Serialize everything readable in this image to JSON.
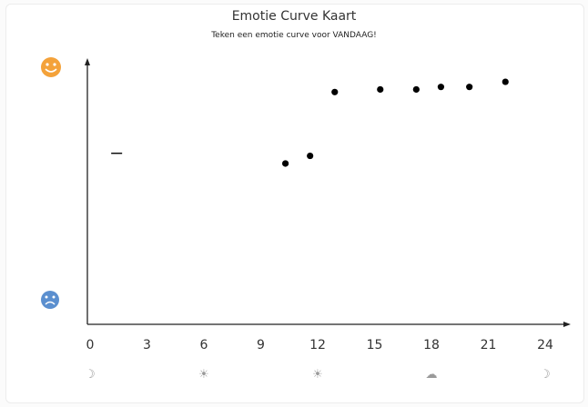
{
  "title": "Emotie Curve Kaart",
  "subtitle": "Teken een emotie curve voor VANDAAG!",
  "emotions": {
    "positive": {
      "icon": "happy-face-icon",
      "label": "",
      "color": "#f4a23a"
    },
    "negative": {
      "icon": "sad-face-icon",
      "label": "",
      "color": "#5b8fcf"
    }
  },
  "time_icons": [
    {
      "name": "moon-icon",
      "glyph": "☽",
      "at": 0
    },
    {
      "name": "sunrise-icon",
      "glyph": "☀",
      "at": 6
    },
    {
      "name": "sun-icon",
      "glyph": "☀",
      "at": 12
    },
    {
      "name": "sunset-icon",
      "glyph": "☁",
      "at": 18
    },
    {
      "name": "moon-icon",
      "glyph": "☽",
      "at": 24
    }
  ],
  "chart_data": {
    "type": "scatter",
    "title": "Emotie Curve Kaart",
    "subtitle": "Teken een emotie curve voor VANDAAG!",
    "xlabel": "",
    "ylabel": "",
    "xlim": [
      0,
      24
    ],
    "ylim": [
      0,
      1
    ],
    "x_ticks": [
      "0",
      "3",
      "6",
      "9",
      "12",
      "15",
      "18",
      "21",
      "24"
    ],
    "grid": false,
    "points": [
      {
        "x": 10.3,
        "y": 0.63
      },
      {
        "x": 11.6,
        "y": 0.66
      },
      {
        "x": 12.9,
        "y": 0.91
      },
      {
        "x": 15.3,
        "y": 0.92
      },
      {
        "x": 17.2,
        "y": 0.92
      },
      {
        "x": 18.5,
        "y": 0.93
      },
      {
        "x": 20.0,
        "y": 0.93
      },
      {
        "x": 21.9,
        "y": 0.95
      }
    ],
    "dash_marker": {
      "x": 1.4,
      "y": 0.67
    }
  }
}
